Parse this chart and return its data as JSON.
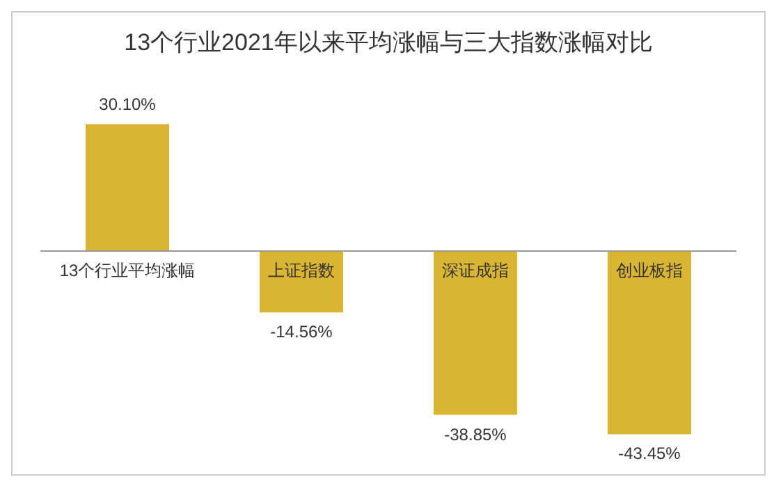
{
  "chart_data": {
    "type": "bar",
    "title": "13个行业2021年以来平均涨幅与三大指数涨幅对比",
    "categories": [
      "13个行业平均涨幅",
      "上证指数",
      "深证成指",
      "创业板指"
    ],
    "values": [
      30.1,
      -14.56,
      -38.85,
      -43.45
    ],
    "value_labels": [
      "30.10%",
      "-14.56%",
      "-38.85%",
      "-43.45%"
    ],
    "color": "#d9b531",
    "grid": false,
    "legend": false
  }
}
